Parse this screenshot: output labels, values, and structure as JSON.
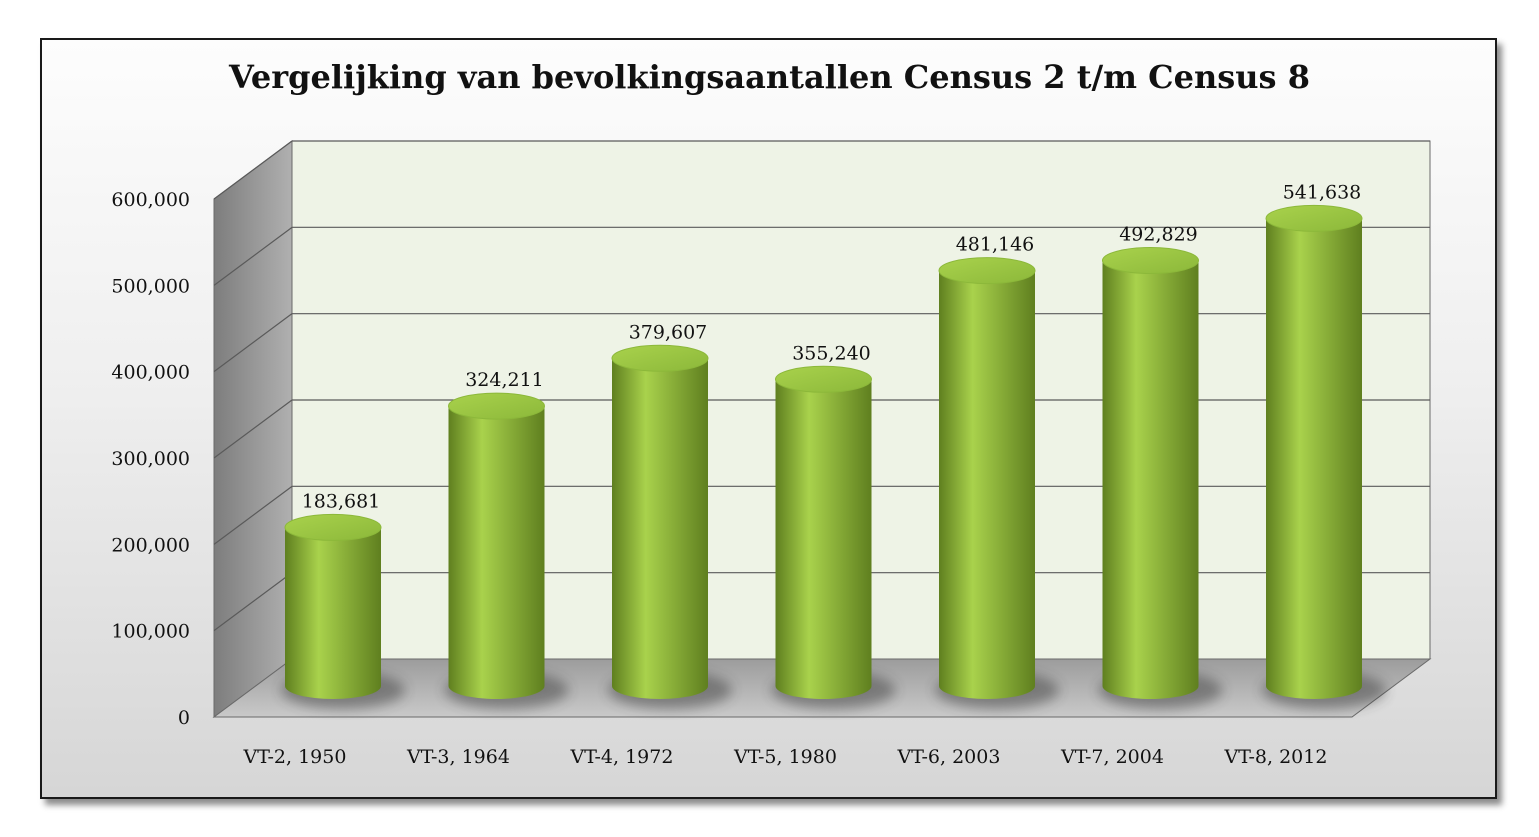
{
  "colors": {
    "bar_light": "#a9d24c",
    "bar_mid": "#8cb83a",
    "bar_dark": "#5f7f1f",
    "wall": "#eef3e6",
    "side_wall": "#9a9a9a",
    "floor": "#a8a8a8",
    "grid": "#5a5a5a"
  },
  "chart_data": {
    "type": "bar",
    "title": "Vergelijking van bevolkingsaantallen Census 2 t/m Census 8",
    "categories": [
      "VT-2, 1950",
      "VT-3, 1964",
      "VT-4, 1972",
      "VT-5, 1980",
      "VT-6, 2003",
      "VT-7, 2004",
      "VT-8, 2012"
    ],
    "values": [
      183681,
      324211,
      379607,
      355240,
      481146,
      492829,
      541638
    ],
    "value_labels": [
      "183,681",
      "324,211",
      "379,607",
      "355,240",
      "481,146",
      "492,829",
      "541,638"
    ],
    "y_ticks": [
      0,
      100000,
      200000,
      300000,
      400000,
      500000,
      600000
    ],
    "y_tick_labels": [
      "0",
      "100,000",
      "200,000",
      "300,000",
      "400,000",
      "500,000",
      "600,000"
    ],
    "ylim": [
      0,
      600000
    ],
    "grid": true,
    "legend": "none",
    "style": "3d-cylinder"
  }
}
